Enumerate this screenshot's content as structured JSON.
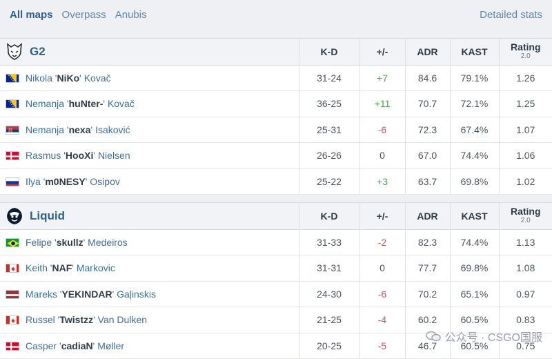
{
  "tabs": [
    "All maps",
    "Overpass",
    "Anubis"
  ],
  "detailed_stats": "Detailed stats",
  "columns": {
    "kd": "K-D",
    "pm": "+/-",
    "adr": "ADR",
    "kast": "KAST",
    "rating": "Rating",
    "rating_sub": "2.0"
  },
  "teams": [
    {
      "name": "G2",
      "logo": "g2-logo",
      "players": [
        {
          "first": "Nikola '",
          "nick": "NiKo",
          "last": "' Kovač",
          "flag": "bosnia",
          "kd": "31-24",
          "pm": "+7",
          "adr": "84.6",
          "kast": "79.1%",
          "rating": "1.26"
        },
        {
          "first": "Nemanja '",
          "nick": "huNter-",
          "last": "' Kovač",
          "flag": "bosnia",
          "kd": "36-25",
          "pm": "+11",
          "adr": "70.7",
          "kast": "72.1%",
          "rating": "1.25"
        },
        {
          "first": "Nemanja '",
          "nick": "nexa",
          "last": "' Isaković",
          "flag": "serbia",
          "kd": "25-31",
          "pm": "-6",
          "adr": "72.3",
          "kast": "67.4%",
          "rating": "1.07"
        },
        {
          "first": "Rasmus '",
          "nick": "HooXi",
          "last": "' Nielsen",
          "flag": "denmark",
          "kd": "26-26",
          "pm": "0",
          "adr": "67.0",
          "kast": "74.4%",
          "rating": "1.06"
        },
        {
          "first": "Ilya '",
          "nick": "m0NESY",
          "last": "' Osipov",
          "flag": "russia",
          "kd": "25-22",
          "pm": "+3",
          "adr": "63.7",
          "kast": "69.8%",
          "rating": "1.02"
        }
      ]
    },
    {
      "name": "Liquid",
      "logo": "liquid-logo",
      "players": [
        {
          "first": "Felipe '",
          "nick": "skullz",
          "last": "' Medeiros",
          "flag": "brazil",
          "kd": "31-33",
          "pm": "-2",
          "adr": "82.3",
          "kast": "74.4%",
          "rating": "1.13"
        },
        {
          "first": "Keith '",
          "nick": "NAF",
          "last": "' Markovic",
          "flag": "canada",
          "kd": "31-31",
          "pm": "0",
          "adr": "77.7",
          "kast": "69.8%",
          "rating": "1.08"
        },
        {
          "first": "Mareks '",
          "nick": "YEKINDAR",
          "last": "' Gaļinskis",
          "flag": "latvia",
          "kd": "24-30",
          "pm": "-6",
          "adr": "70.2",
          "kast": "65.1%",
          "rating": "0.97"
        },
        {
          "first": "Russel '",
          "nick": "Twistzz",
          "last": "' Van Dulken",
          "flag": "canada",
          "kd": "21-25",
          "pm": "-4",
          "adr": "60.2",
          "kast": "60.5%",
          "rating": "0.83"
        },
        {
          "first": "Casper '",
          "nick": "cadiaN",
          "last": "' Møller",
          "flag": "denmark",
          "kd": "20-25",
          "pm": "-5",
          "adr": "46.7",
          "kast": "60.5%",
          "rating": "0.75"
        }
      ]
    }
  ],
  "watermark": "公众号 · CSGO国服"
}
